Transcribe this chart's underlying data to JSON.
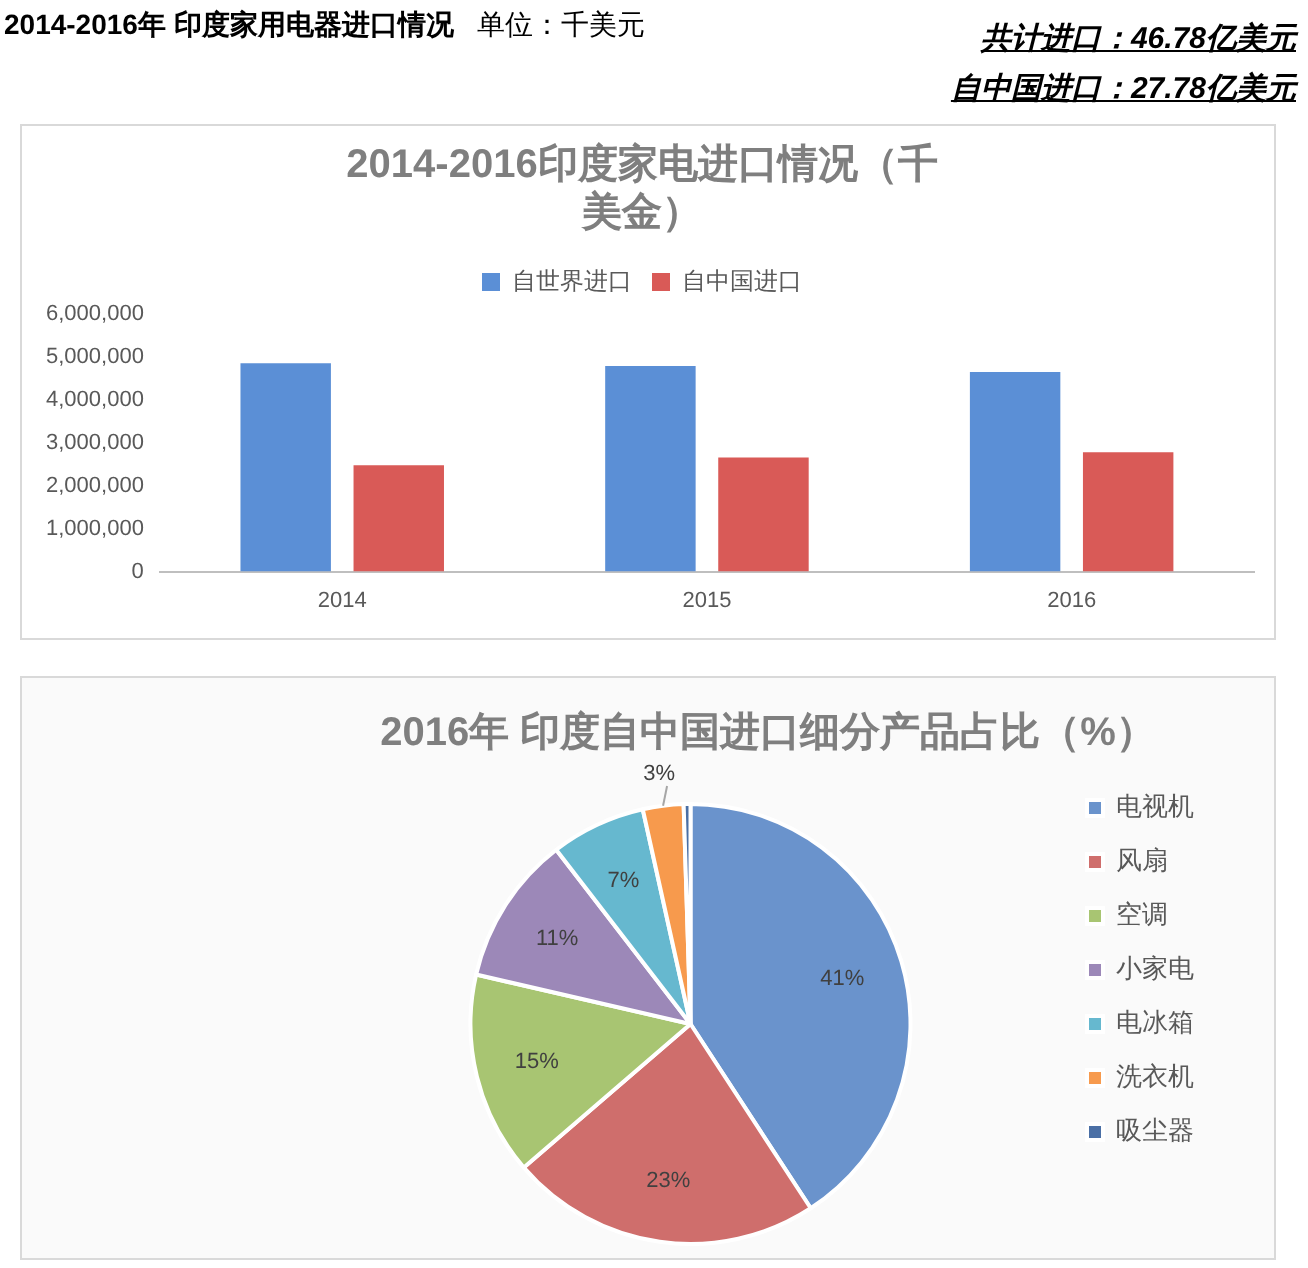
{
  "chart_data": [
    {
      "type": "other",
      "title": "2014-2016年 印度家用电器进口情况",
      "subtitle": "单位：千美元",
      "annotations": [
        "共计进口：46.78亿美元",
        "自中国进口：27.78亿美元"
      ]
    },
    {
      "type": "bar",
      "title": "2014-2016印度家电进口情况（千美金）",
      "categories": [
        "2014",
        "2015",
        "2016"
      ],
      "series": [
        {
          "name": "自世界进口",
          "color": "#5b8fd6",
          "values": [
            4850000,
            4790000,
            4650000
          ]
        },
        {
          "name": "自中国进口",
          "color": "#d95a57",
          "values": [
            2480000,
            2660000,
            2780000
          ]
        }
      ],
      "ylim": [
        0,
        6000000
      ],
      "yticks": [
        {
          "value": 0,
          "label": "0"
        },
        {
          "value": 1000000,
          "label": "1,000,000"
        },
        {
          "value": 2000000,
          "label": "2,000,000"
        },
        {
          "value": 3000000,
          "label": "3,000,000"
        },
        {
          "value": 4000000,
          "label": "4,000,000"
        },
        {
          "value": 5000000,
          "label": "5,000,000"
        },
        {
          "value": 6000000,
          "label": "6,000,000"
        }
      ],
      "grid": false,
      "legend": "top"
    },
    {
      "type": "pie",
      "title": "2016年 印度自中国进口细分产品占比（%）",
      "categories": [
        "电视机",
        "风扇",
        "空调",
        "小家电",
        "电冰箱",
        "洗衣机",
        "吸尘器"
      ],
      "values": [
        41,
        23,
        15,
        11,
        7,
        3,
        0.5
      ],
      "colors": [
        "#6a93cc",
        "#cf6e6c",
        "#a8c572",
        "#9c88b8",
        "#66b8cf",
        "#f79a4d",
        "#4a6fa5"
      ],
      "value_labels": [
        "41%",
        "23%",
        "15%",
        "11%",
        "7%",
        "3%",
        null
      ],
      "legend": "right"
    }
  ]
}
